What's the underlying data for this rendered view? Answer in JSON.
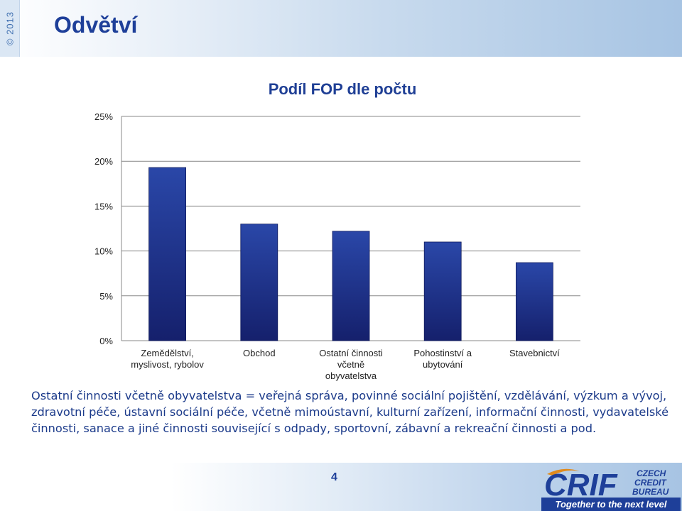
{
  "header": {
    "copyright": "© 2013",
    "title": "Odvětví"
  },
  "chart_data": {
    "type": "bar",
    "title": "Podíl FOP dle počtu",
    "xlabel": "",
    "ylabel": "",
    "categories": [
      [
        "Zemědělství,",
        "myslivost, rybolov"
      ],
      [
        "Obchod"
      ],
      [
        "Ostatní činnosti",
        "včetně",
        "obyvatelstva"
      ],
      [
        "Pohostinství a",
        "ubytování"
      ],
      [
        "Stavebnictví"
      ]
    ],
    "values": [
      19.3,
      13.0,
      12.2,
      11.0,
      8.7
    ],
    "ylim": [
      0,
      25
    ],
    "yticks": [
      0,
      5,
      10,
      15,
      20,
      25
    ],
    "ytick_suffix": "%",
    "grid": true,
    "legend": "none",
    "bar_color": "#1c2f8c"
  },
  "footnote": "Ostatní činnosti včetně obyvatelstva = veřejná správa, povinné sociální pojištění, vzdělávání, výzkum a vývoj, zdravotní péče, ústavní sociální péče, včetně mimoústavní, kulturní zařízení, informační činnosti, vydavatelské činnosti, sanace a jiné činnosti související s odpady, sportovní, zábavní a rekreační činnosti a pod.",
  "footer": {
    "page_number": "4",
    "logo_main": "CRIF",
    "logo_line1": "CZECH",
    "logo_line2": "CREDIT",
    "logo_line3": "BUREAU",
    "tagline": "Together to the next level"
  },
  "colors": {
    "accent": "#1e3f99",
    "bar_top": "#2a47a8",
    "bar_bottom": "#15206c"
  }
}
